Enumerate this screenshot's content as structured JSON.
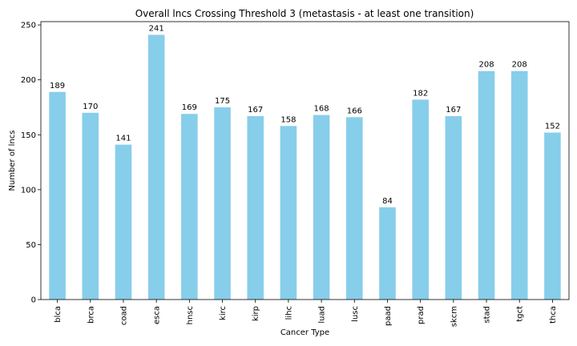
{
  "chart_data": {
    "type": "bar",
    "title": "Overall lncs Crossing Threshold 3 (metastasis - at least one transition)",
    "xlabel": "Cancer Type",
    "ylabel": "Number of lncs",
    "categories": [
      "blca",
      "brca",
      "coad",
      "esca",
      "hnsc",
      "kirc",
      "kirp",
      "lihc",
      "luad",
      "lusc",
      "paad",
      "prad",
      "skcm",
      "stad",
      "tgct",
      "thca"
    ],
    "values": [
      189,
      170,
      141,
      241,
      169,
      175,
      167,
      158,
      168,
      166,
      84,
      182,
      167,
      208,
      208,
      152
    ],
    "ylim": [
      0,
      253
    ],
    "yticks": [
      0,
      50,
      100,
      150,
      200,
      250
    ],
    "bar_color": "#87CEEB",
    "grid": false,
    "legend": "none"
  }
}
